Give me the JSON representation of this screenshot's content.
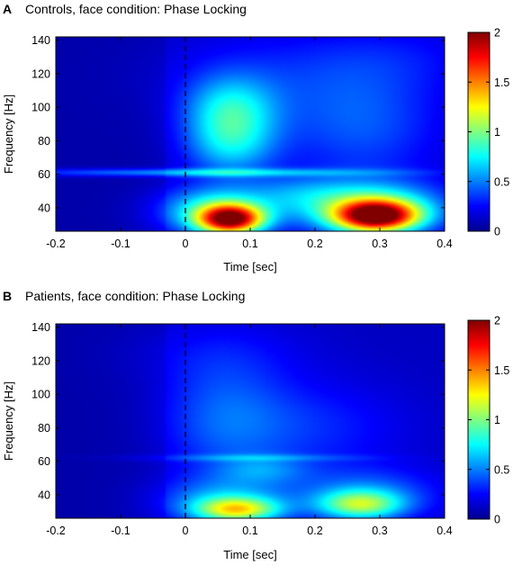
{
  "chart_data": [
    {
      "type": "heatmap",
      "panel_label": "A",
      "title": "Controls, face condition: Phase Locking",
      "xlabel": "Time [sec]",
      "ylabel": "Frequency [Hz]",
      "xlim": [
        -0.2,
        0.4
      ],
      "ylim": [
        26,
        142
      ],
      "xticks": [
        "-0.2",
        "-0.1",
        "0",
        "0.1",
        "0.2",
        "0.3",
        "0.4"
      ],
      "yticks": [
        "40",
        "60",
        "80",
        "100",
        "120",
        "140"
      ],
      "colorbar": {
        "colormap": "jet",
        "range": [
          0,
          2
        ],
        "ticks": [
          "0",
          "0.5",
          "1",
          "1.5",
          "2"
        ]
      },
      "event_marker_time": 0,
      "base_level": 0.06,
      "features": [
        {
          "t": 0.0,
          "f": 61,
          "dt": 0.2,
          "df": 1.6,
          "v": 0.45
        },
        {
          "t": 0.07,
          "f": 33,
          "dt": 0.035,
          "df": 6,
          "v": 1.55
        },
        {
          "t": 0.045,
          "f": 38,
          "dt": 0.06,
          "df": 10,
          "v": 0.7
        },
        {
          "t": 0.295,
          "f": 35,
          "dt": 0.045,
          "df": 6.5,
          "v": 1.6
        },
        {
          "t": 0.285,
          "f": 40,
          "dt": 0.08,
          "df": 11,
          "v": 0.75
        },
        {
          "t": 0.07,
          "f": 97,
          "dt": 0.05,
          "df": 15,
          "v": 0.6
        },
        {
          "t": 0.07,
          "f": 75,
          "dt": 0.05,
          "df": 13,
          "v": 0.4
        },
        {
          "t": 0.27,
          "f": 90,
          "dt": 0.09,
          "df": 25,
          "v": 0.3
        },
        {
          "t": 0.12,
          "f": 120,
          "dt": 0.12,
          "df": 20,
          "v": 0.15
        },
        {
          "t": 0.33,
          "f": 130,
          "dt": 0.1,
          "df": 15,
          "v": 0.12
        },
        {
          "t": 0.17,
          "f": 48,
          "dt": 0.06,
          "df": 8,
          "v": 0.25
        }
      ]
    },
    {
      "type": "heatmap",
      "panel_label": "B",
      "title": "Patients, face condition: Phase Locking",
      "xlabel": "Time [sec]",
      "ylabel": "Frequency [Hz]",
      "xlim": [
        -0.2,
        0.4
      ],
      "ylim": [
        26,
        142
      ],
      "xticks": [
        "-0.2",
        "-0.1",
        "0",
        "0.1",
        "0.2",
        "0.3",
        "0.4"
      ],
      "yticks": [
        "40",
        "60",
        "80",
        "100",
        "120",
        "140"
      ],
      "colorbar": {
        "colormap": "jet",
        "range": [
          0,
          2
        ],
        "ticks": [
          "0",
          "0.5",
          "1",
          "1.5",
          "2"
        ]
      },
      "event_marker_time": 0,
      "base_level": 0.06,
      "features": [
        {
          "t": 0.1,
          "f": 62,
          "dt": 0.12,
          "df": 1.4,
          "v": 0.2
        },
        {
          "t": 0.08,
          "f": 31,
          "dt": 0.045,
          "df": 5,
          "v": 0.85
        },
        {
          "t": 0.06,
          "f": 36,
          "dt": 0.07,
          "df": 10,
          "v": 0.45
        },
        {
          "t": 0.27,
          "f": 34,
          "dt": 0.045,
          "df": 6,
          "v": 0.75
        },
        {
          "t": 0.28,
          "f": 40,
          "dt": 0.08,
          "df": 11,
          "v": 0.35
        },
        {
          "t": 0.06,
          "f": 85,
          "dt": 0.07,
          "df": 25,
          "v": 0.3
        },
        {
          "t": 0.2,
          "f": 80,
          "dt": 0.1,
          "df": 20,
          "v": 0.2
        },
        {
          "t": 0.12,
          "f": 55,
          "dt": 0.05,
          "df": 6,
          "v": 0.25
        },
        {
          "t": 0.05,
          "f": 125,
          "dt": 0.1,
          "df": 15,
          "v": 0.12
        }
      ]
    }
  ]
}
